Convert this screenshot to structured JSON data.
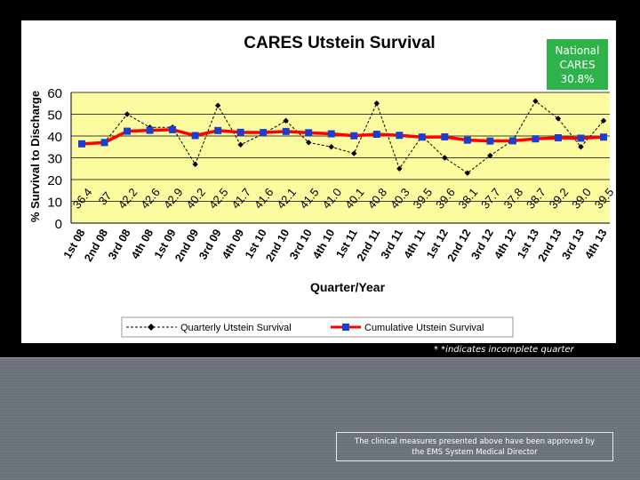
{
  "chart_data": {
    "type": "line",
    "title": "CARES Utstein Survival",
    "xlabel": "Quarter/Year",
    "ylabel": "% Survival to Discharge",
    "ylim": [
      0,
      60
    ],
    "yticks": [
      0,
      10,
      20,
      30,
      40,
      50,
      60
    ],
    "grid": true,
    "legend_position": "bottom",
    "categories": [
      "1st 08",
      "2nd 08",
      "3rd 08",
      "4th 08",
      "1st 09",
      "2nd 09",
      "3rd 09",
      "4th 09",
      "1st 10",
      "2nd 10",
      "3rd 10",
      "4th 10",
      "1st 11",
      "2nd 11",
      "3rd 11",
      "4th 11",
      "1st 12",
      "2nd 12",
      "3rd 12",
      "4th 12",
      "1st 13",
      "2nd 13",
      "3rd 13",
      "4th 13"
    ],
    "series": [
      {
        "name": "Quarterly Utstein Survival",
        "color": "#000000",
        "style": "dashed",
        "marker": "diamond",
        "values": [
          36,
          37,
          50,
          44,
          44,
          27,
          54,
          36,
          41,
          47,
          37,
          35,
          32,
          55,
          25,
          40,
          30,
          23,
          31,
          38,
          56,
          48,
          35,
          47
        ]
      },
      {
        "name": "Cumulative Utstein Survival",
        "color": "#ff0000",
        "marker_color": "#1a3fd0",
        "style": "solid",
        "marker": "square",
        "values": [
          36.4,
          37,
          42.2,
          42.6,
          42.9,
          40.2,
          42.5,
          41.7,
          41.6,
          42.1,
          41.5,
          41.0,
          40.1,
          40.8,
          40.3,
          39.5,
          39.6,
          38.1,
          37.7,
          37.8,
          38.7,
          39.2,
          39.0,
          39.5
        ],
        "data_labels": [
          "36.4",
          "37",
          "42.2",
          "42.6",
          "42.9",
          "40.2",
          "42.5",
          "41.7",
          "41.6",
          "42.1",
          "41.5",
          "41.0",
          "40.1",
          "40.8",
          "40.3",
          "39.5",
          "39.6",
          "38.1",
          "37.7",
          "37.8",
          "38.7",
          "39.2",
          "39.0",
          "39.5"
        ]
      }
    ],
    "colors": {
      "plot_bg": "#fdfba0",
      "grid": "#000000"
    }
  },
  "national_box": {
    "line1": "National",
    "line2": "CARES",
    "line3": "30.8%",
    "bg": "#2db34a"
  },
  "footnote": "* *indicates incomplete quarter",
  "approval": {
    "line1": "The clinical measures presented above have been approved by",
    "line2": "the EMS System Medical Director"
  }
}
